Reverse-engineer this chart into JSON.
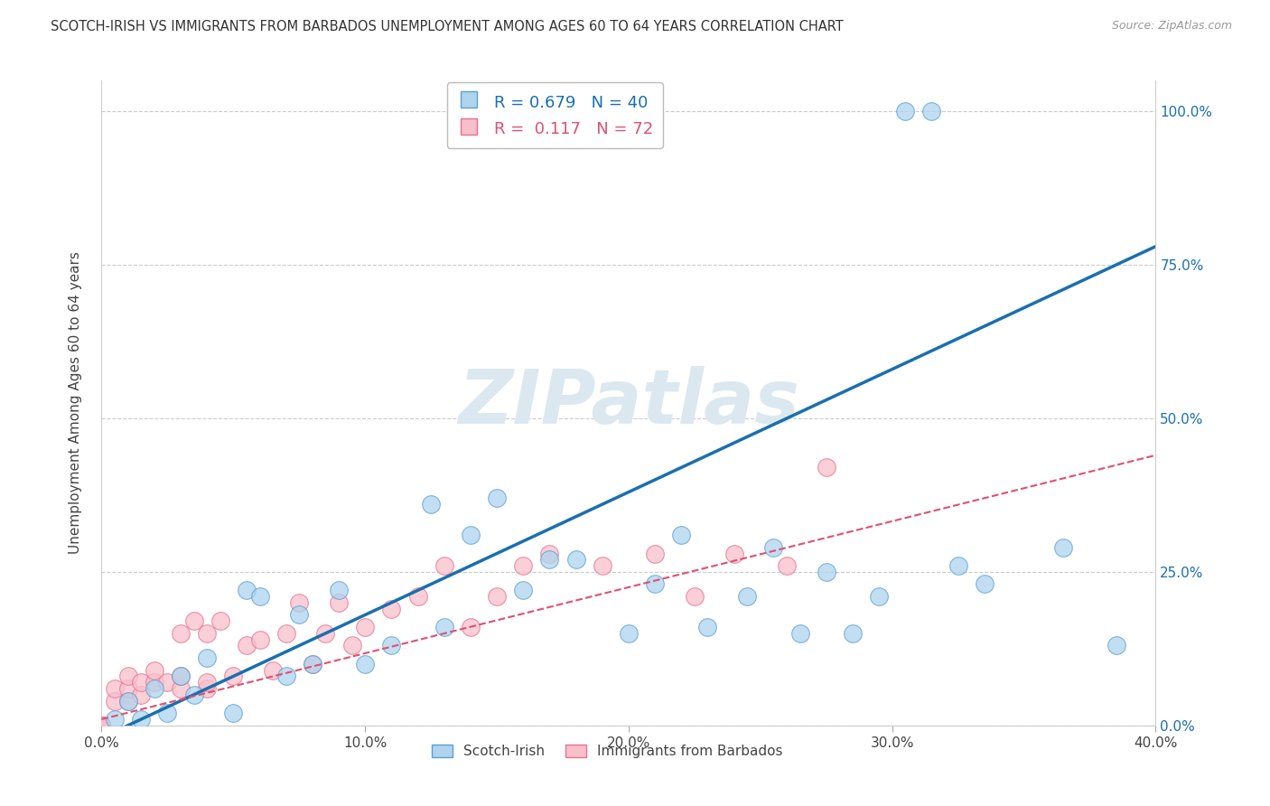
{
  "title": "SCOTCH-IRISH VS IMMIGRANTS FROM BARBADOS UNEMPLOYMENT AMONG AGES 60 TO 64 YEARS CORRELATION CHART",
  "source": "Source: ZipAtlas.com",
  "ylabel": "Unemployment Among Ages 60 to 64 years",
  "xlim": [
    0.0,
    0.4
  ],
  "ylim": [
    0.0,
    1.05
  ],
  "xticks": [
    0.0,
    0.1,
    0.2,
    0.3,
    0.4
  ],
  "yticks": [
    0.0,
    0.25,
    0.5,
    0.75,
    1.0
  ],
  "xticklabels": [
    "0.0%",
    "10.0%",
    "20.0%",
    "30.0%",
    "40.0%"
  ],
  "yticklabels": [
    "0.0%",
    "25.0%",
    "50.0%",
    "75.0%",
    "100.0%"
  ],
  "scotch_irish_R": 0.679,
  "scotch_irish_N": 40,
  "barbados_R": 0.117,
  "barbados_N": 72,
  "scotch_irish_color": "#aed4ee",
  "barbados_color": "#f9bfca",
  "scotch_irish_edge_color": "#5a9fd4",
  "barbados_edge_color": "#e87090",
  "scotch_irish_line_color": "#1a6faf",
  "barbados_line_color": "#e05070",
  "watermark_color": "#dce8f0",
  "legend_text_blue": "#1a6faf",
  "legend_text_pink": "#e05070",
  "watermark": "ZIPatlas",
  "scotch_irish_x": [
    0.005,
    0.01,
    0.015,
    0.02,
    0.025,
    0.03,
    0.035,
    0.04,
    0.05,
    0.055,
    0.06,
    0.07,
    0.075,
    0.08,
    0.09,
    0.1,
    0.11,
    0.125,
    0.13,
    0.14,
    0.15,
    0.16,
    0.17,
    0.18,
    0.2,
    0.21,
    0.22,
    0.23,
    0.245,
    0.255,
    0.265,
    0.275,
    0.285,
    0.295,
    0.305,
    0.315,
    0.325,
    0.335,
    0.365,
    0.385
  ],
  "scotch_irish_y": [
    0.01,
    0.04,
    0.01,
    0.06,
    0.02,
    0.08,
    0.05,
    0.11,
    0.02,
    0.22,
    0.21,
    0.08,
    0.18,
    0.1,
    0.22,
    0.1,
    0.13,
    0.36,
    0.16,
    0.31,
    0.37,
    0.22,
    0.27,
    0.27,
    0.15,
    0.23,
    0.31,
    0.16,
    0.21,
    0.29,
    0.15,
    0.25,
    0.15,
    0.21,
    1.0,
    1.0,
    0.26,
    0.23,
    0.29,
    0.13
  ],
  "barbados_x": [
    0.0,
    0.0,
    0.0,
    0.0,
    0.0,
    0.0,
    0.0,
    0.0,
    0.0,
    0.0,
    0.0,
    0.0,
    0.0,
    0.0,
    0.0,
    0.0,
    0.0,
    0.0,
    0.0,
    0.0,
    0.0,
    0.0,
    0.0,
    0.0,
    0.0,
    0.0,
    0.0,
    0.0,
    0.0,
    0.0,
    0.005,
    0.005,
    0.01,
    0.01,
    0.01,
    0.015,
    0.015,
    0.02,
    0.02,
    0.025,
    0.03,
    0.03,
    0.03,
    0.035,
    0.04,
    0.04,
    0.04,
    0.045,
    0.05,
    0.055,
    0.06,
    0.065,
    0.07,
    0.075,
    0.08,
    0.085,
    0.09,
    0.095,
    0.1,
    0.11,
    0.12,
    0.13,
    0.14,
    0.15,
    0.16,
    0.17,
    0.19,
    0.21,
    0.225,
    0.24,
    0.26,
    0.275
  ],
  "barbados_y": [
    0.0,
    0.0,
    0.0,
    0.0,
    0.0,
    0.0,
    0.0,
    0.0,
    0.0,
    0.0,
    0.0,
    0.0,
    0.0,
    0.0,
    0.0,
    0.0,
    0.0,
    0.0,
    0.0,
    0.0,
    0.0,
    0.0,
    0.0,
    0.0,
    0.0,
    0.0,
    0.0,
    0.0,
    0.0,
    0.0,
    0.04,
    0.06,
    0.04,
    0.06,
    0.08,
    0.05,
    0.07,
    0.07,
    0.09,
    0.07,
    0.06,
    0.08,
    0.15,
    0.17,
    0.06,
    0.07,
    0.15,
    0.17,
    0.08,
    0.13,
    0.14,
    0.09,
    0.15,
    0.2,
    0.1,
    0.15,
    0.2,
    0.13,
    0.16,
    0.19,
    0.21,
    0.26,
    0.16,
    0.21,
    0.26,
    0.28,
    0.26,
    0.28,
    0.21,
    0.28,
    0.26,
    0.42
  ],
  "si_trend_x0": 0.0,
  "si_trend_y0": -0.02,
  "si_trend_x1": 0.4,
  "si_trend_y1": 0.78,
  "bb_trend_x0": 0.0,
  "bb_trend_y0": 0.01,
  "bb_trend_x1": 0.4,
  "bb_trend_y1": 0.44
}
